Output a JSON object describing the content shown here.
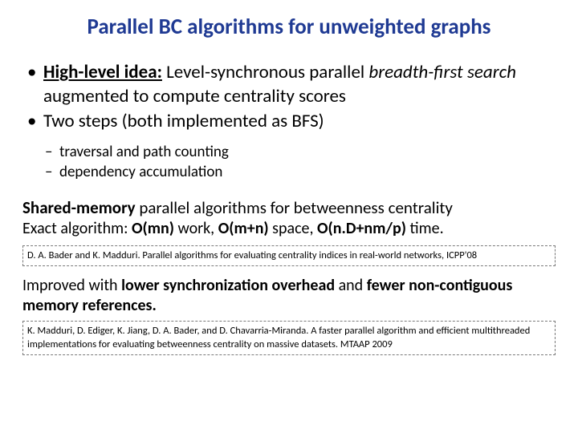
{
  "title": "Parallel BC algorithms for unweighted graphs",
  "bullets": {
    "b1_lead": "High-level idea:",
    "b1_plain1": " Level-synchronous parallel ",
    "b1_ital": "breadth-first search",
    "b1_plain2": " augmented to compute centrality scores",
    "b2": "Two steps (both implemented as BFS)",
    "sub1": "traversal and path counting",
    "sub2": "dependency accumulation"
  },
  "shared": {
    "bold": "Shared-memory",
    "rest": " parallel algorithms for betweenness centrality"
  },
  "exact": {
    "pre": "Exact algorithm: ",
    "w1": "O(mn)",
    "mid1": " work, ",
    "w2": "O(m+n)",
    "mid2": " space, ",
    "w3": "O(n.D+nm/p)",
    "post": " time."
  },
  "cite1": "D. A. Bader and K. Madduri. Parallel algorithms for evaluating centrality indices in real-world networks, ICPP'08",
  "improved": {
    "pre": "Improved with ",
    "b1": "lower synchronization overhead",
    "mid": " and ",
    "b2": "fewer non-contiguous memory references."
  },
  "cite2": "K. Madduri, D. Ediger, K. Jiang, D. A. Bader, and D. Chavarria-Miranda. A faster parallel algorithm and efficient multithreaded implementations for evaluating betweenness centrality on massive datasets. MTAAP 2009",
  "colors": {
    "title": "#1f3a93",
    "text": "#000000",
    "dash_border": "#7a7a7a",
    "background": "#ffffff"
  },
  "fonts": {
    "title_size": 27,
    "bullet_size": 23,
    "sub_size": 19,
    "para_size": 21,
    "cite_size": 12.5
  }
}
